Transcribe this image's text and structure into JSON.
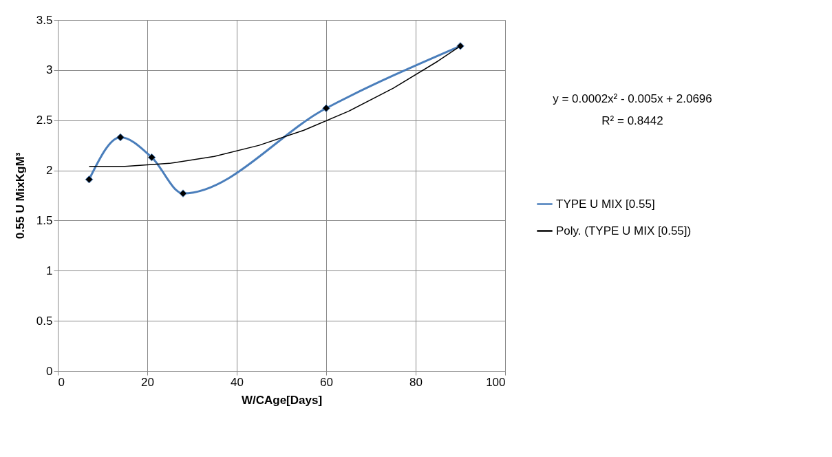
{
  "chart_data": {
    "type": "line",
    "xlabel": "W/CAge[Days]",
    "ylabel": "0.55 U MixKgM³",
    "xlim": [
      0,
      100
    ],
    "xticks": [
      0,
      20,
      40,
      60,
      80,
      100
    ],
    "ylim": [
      0,
      3.5
    ],
    "yticks": [
      0,
      0.5,
      1,
      1.5,
      2,
      2.5,
      3,
      3.5
    ],
    "grid": true,
    "legend": "right",
    "annotations": [
      "y = 0.0002x² - 0.005x + 2.0696",
      "R² = 0.8442"
    ],
    "series": [
      {
        "name": "TYPE  U MIX [0.55]",
        "color": "#4a7ebb",
        "marker": "diamond",
        "x": [
          7,
          14,
          21,
          28,
          60,
          90
        ],
        "values": [
          1.91,
          2.33,
          2.13,
          1.77,
          2.62,
          3.24
        ]
      },
      {
        "name": "Poly. (TYPE  U MIX [0.55])",
        "color": "#000000",
        "marker": "none",
        "x": [
          7,
          15,
          25,
          35,
          45,
          55,
          65,
          75,
          85,
          90
        ],
        "values": [
          2.04,
          2.04,
          2.07,
          2.14,
          2.25,
          2.4,
          2.59,
          2.82,
          3.09,
          3.24
        ]
      }
    ]
  }
}
